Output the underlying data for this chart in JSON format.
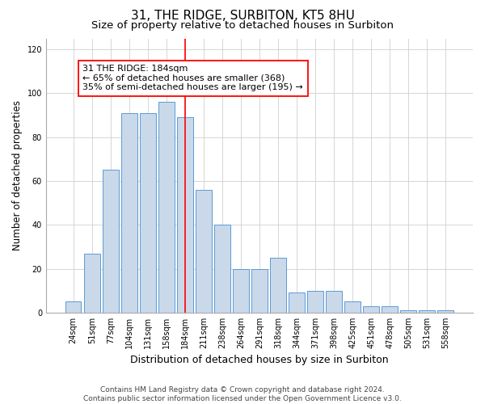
{
  "title1": "31, THE RIDGE, SURBITON, KT5 8HU",
  "title2": "Size of property relative to detached houses in Surbiton",
  "xlabel": "Distribution of detached houses by size in Surbiton",
  "ylabel": "Number of detached properties",
  "categories": [
    "24sqm",
    "51sqm",
    "77sqm",
    "104sqm",
    "131sqm",
    "158sqm",
    "184sqm",
    "211sqm",
    "238sqm",
    "264sqm",
    "291sqm",
    "318sqm",
    "344sqm",
    "371sqm",
    "398sqm",
    "425sqm",
    "451sqm",
    "478sqm",
    "505sqm",
    "531sqm",
    "558sqm"
  ],
  "values": [
    5,
    27,
    65,
    91,
    91,
    96,
    89,
    56,
    40,
    20,
    20,
    25,
    9,
    10,
    10,
    5,
    3,
    3,
    1,
    1,
    1
  ],
  "bar_color": "#c9d9ea",
  "bar_edge_color": "#5b9bd5",
  "highlight_index": 6,
  "highlight_line_color": "red",
  "annotation_line1": "31 THE RIDGE: 184sqm",
  "annotation_line2": "← 65% of detached houses are smaller (368)",
  "annotation_line3": "35% of semi-detached houses are larger (195) →",
  "annotation_box_color": "white",
  "annotation_box_edge_color": "red",
  "ylim": [
    0,
    125
  ],
  "yticks": [
    0,
    20,
    40,
    60,
    80,
    100,
    120
  ],
  "footer_line1": "Contains HM Land Registry data © Crown copyright and database right 2024.",
  "footer_line2": "Contains public sector information licensed under the Open Government Licence v3.0.",
  "background_color": "white",
  "grid_color": "#d0d0d0",
  "title1_fontsize": 11,
  "title2_fontsize": 9.5,
  "xlabel_fontsize": 9,
  "ylabel_fontsize": 8.5,
  "tick_fontsize": 7,
  "annotation_fontsize": 8,
  "footer_fontsize": 6.5
}
